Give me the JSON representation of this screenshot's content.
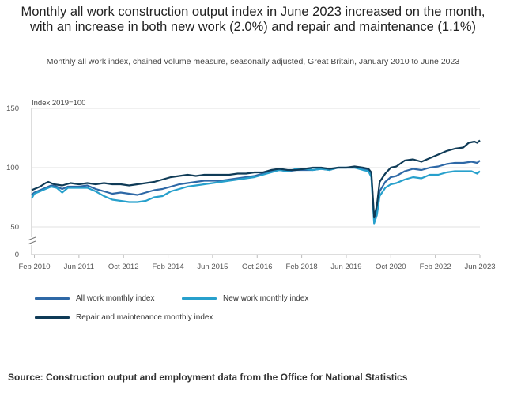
{
  "title": "Monthly all work construction output index in June 2023 increased on the month, with an increase in both new work (2.0%) and repair and maintenance (1.1%)",
  "subtitle": "Monthly all work index, chained volume measure, seasonally adjusted, Great Britain, January 2010 to June 2023",
  "source": "Source: Construction output and employment data from the Office for National Statistics",
  "colors": {
    "all_work": "#2e68a6",
    "new_work": "#27a0cc",
    "repair": "#0f3b57",
    "grid": "#e0e0e0",
    "axis": "#bbbbbb"
  },
  "chart_data": {
    "type": "line",
    "ylabel": "Index 2019=100",
    "ylim": [
      0,
      150
    ],
    "yticks": [
      0,
      50,
      100,
      150
    ],
    "y_axis_break": true,
    "xlabels": [
      "Feb 2010",
      "Jun 2011",
      "Oct 2012",
      "Feb 2014",
      "Jun 2015",
      "Oct 2016",
      "Feb 2018",
      "Jun 2019",
      "Oct 2020",
      "Feb 2022",
      "Jun 2023"
    ],
    "grid": true,
    "legend_position": "bottom",
    "series": [
      {
        "name": "All work monthly index",
        "color": "#2e68a6",
        "points": [
          [
            "2010-01",
            77
          ],
          [
            "2010-02",
            79
          ],
          [
            "2010-04",
            81
          ],
          [
            "2010-06",
            83
          ],
          [
            "2010-08",
            85
          ],
          [
            "2010-10",
            84
          ],
          [
            "2010-12",
            82
          ],
          [
            "2011-02",
            84
          ],
          [
            "2011-06",
            84
          ],
          [
            "2011-09",
            85
          ],
          [
            "2011-12",
            82
          ],
          [
            "2012-03",
            80
          ],
          [
            "2012-06",
            78
          ],
          [
            "2012-09",
            79
          ],
          [
            "2012-12",
            78
          ],
          [
            "2013-03",
            77
          ],
          [
            "2013-06",
            79
          ],
          [
            "2013-09",
            81
          ],
          [
            "2013-12",
            82
          ],
          [
            "2014-03",
            84
          ],
          [
            "2014-06",
            86
          ],
          [
            "2014-09",
            87
          ],
          [
            "2014-12",
            88
          ],
          [
            "2015-03",
            89
          ],
          [
            "2015-06",
            89
          ],
          [
            "2015-09",
            89
          ],
          [
            "2015-12",
            90
          ],
          [
            "2016-03",
            91
          ],
          [
            "2016-06",
            92
          ],
          [
            "2016-09",
            93
          ],
          [
            "2016-12",
            95
          ],
          [
            "2017-03",
            97
          ],
          [
            "2017-06",
            98
          ],
          [
            "2017-09",
            97
          ],
          [
            "2017-12",
            98
          ],
          [
            "2018-03",
            98
          ],
          [
            "2018-06",
            98
          ],
          [
            "2018-09",
            99
          ],
          [
            "2018-12",
            98
          ],
          [
            "2019-03",
            100
          ],
          [
            "2019-06",
            100
          ],
          [
            "2019-09",
            100
          ],
          [
            "2019-12",
            99
          ],
          [
            "2020-02",
            98
          ],
          [
            "2020-03",
            93
          ],
          [
            "2020-04",
            56
          ],
          [
            "2020-05",
            64
          ],
          [
            "2020-06",
            80
          ],
          [
            "2020-08",
            88
          ],
          [
            "2020-10",
            92
          ],
          [
            "2020-12",
            93
          ],
          [
            "2021-03",
            97
          ],
          [
            "2021-06",
            99
          ],
          [
            "2021-09",
            98
          ],
          [
            "2021-12",
            100
          ],
          [
            "2022-03",
            101
          ],
          [
            "2022-06",
            103
          ],
          [
            "2022-09",
            104
          ],
          [
            "2022-12",
            104
          ],
          [
            "2023-03",
            105
          ],
          [
            "2023-05",
            104
          ],
          [
            "2023-06",
            106
          ]
        ]
      },
      {
        "name": "New work monthly index",
        "color": "#27a0cc",
        "points": [
          [
            "2010-01",
            74
          ],
          [
            "2010-02",
            78
          ],
          [
            "2010-04",
            80
          ],
          [
            "2010-06",
            82
          ],
          [
            "2010-08",
            84
          ],
          [
            "2010-10",
            83
          ],
          [
            "2010-12",
            79
          ],
          [
            "2011-02",
            83
          ],
          [
            "2011-06",
            83
          ],
          [
            "2011-09",
            83
          ],
          [
            "2011-12",
            80
          ],
          [
            "2012-03",
            76
          ],
          [
            "2012-06",
            73
          ],
          [
            "2012-09",
            72
          ],
          [
            "2012-12",
            71
          ],
          [
            "2013-03",
            71
          ],
          [
            "2013-06",
            72
          ],
          [
            "2013-09",
            75
          ],
          [
            "2013-12",
            76
          ],
          [
            "2014-03",
            80
          ],
          [
            "2014-06",
            82
          ],
          [
            "2014-09",
            84
          ],
          [
            "2014-12",
            85
          ],
          [
            "2015-03",
            86
          ],
          [
            "2015-06",
            87
          ],
          [
            "2015-09",
            88
          ],
          [
            "2015-12",
            89
          ],
          [
            "2016-03",
            90
          ],
          [
            "2016-06",
            91
          ],
          [
            "2016-09",
            92
          ],
          [
            "2016-12",
            94
          ],
          [
            "2017-03",
            96
          ],
          [
            "2017-06",
            98
          ],
          [
            "2017-09",
            97
          ],
          [
            "2017-12",
            99
          ],
          [
            "2018-03",
            99
          ],
          [
            "2018-06",
            98
          ],
          [
            "2018-09",
            99
          ],
          [
            "2018-12",
            98
          ],
          [
            "2019-03",
            100
          ],
          [
            "2019-06",
            100
          ],
          [
            "2019-09",
            100
          ],
          [
            "2019-12",
            98
          ],
          [
            "2020-02",
            97
          ],
          [
            "2020-03",
            92
          ],
          [
            "2020-04",
            53
          ],
          [
            "2020-05",
            60
          ],
          [
            "2020-06",
            76
          ],
          [
            "2020-08",
            83
          ],
          [
            "2020-10",
            86
          ],
          [
            "2020-12",
            87
          ],
          [
            "2021-03",
            90
          ],
          [
            "2021-06",
            92
          ],
          [
            "2021-09",
            91
          ],
          [
            "2021-12",
            94
          ],
          [
            "2022-03",
            94
          ],
          [
            "2022-06",
            96
          ],
          [
            "2022-09",
            97
          ],
          [
            "2022-12",
            97
          ],
          [
            "2023-03",
            97
          ],
          [
            "2023-05",
            95
          ],
          [
            "2023-06",
            97
          ]
        ]
      },
      {
        "name": "Repair and maintenance monthly index",
        "color": "#0f3b57",
        "points": [
          [
            "2010-01",
            81
          ],
          [
            "2010-02",
            82
          ],
          [
            "2010-04",
            84
          ],
          [
            "2010-06",
            87
          ],
          [
            "2010-07",
            88
          ],
          [
            "2010-09",
            86
          ],
          [
            "2010-12",
            85
          ],
          [
            "2011-03",
            87
          ],
          [
            "2011-06",
            86
          ],
          [
            "2011-09",
            87
          ],
          [
            "2011-12",
            86
          ],
          [
            "2012-03",
            87
          ],
          [
            "2012-06",
            86
          ],
          [
            "2012-09",
            86
          ],
          [
            "2012-12",
            85
          ],
          [
            "2013-03",
            86
          ],
          [
            "2013-06",
            87
          ],
          [
            "2013-09",
            88
          ],
          [
            "2013-12",
            90
          ],
          [
            "2014-03",
            92
          ],
          [
            "2014-06",
            93
          ],
          [
            "2014-09",
            94
          ],
          [
            "2014-12",
            93
          ],
          [
            "2015-03",
            94
          ],
          [
            "2015-06",
            94
          ],
          [
            "2015-09",
            94
          ],
          [
            "2015-12",
            94
          ],
          [
            "2016-03",
            95
          ],
          [
            "2016-06",
            95
          ],
          [
            "2016-09",
            96
          ],
          [
            "2016-12",
            96
          ],
          [
            "2017-03",
            98
          ],
          [
            "2017-06",
            99
          ],
          [
            "2017-09",
            98
          ],
          [
            "2017-12",
            98
          ],
          [
            "2018-03",
            99
          ],
          [
            "2018-06",
            100
          ],
          [
            "2018-09",
            100
          ],
          [
            "2018-12",
            99
          ],
          [
            "2019-03",
            100
          ],
          [
            "2019-06",
            100
          ],
          [
            "2019-09",
            101
          ],
          [
            "2019-12",
            100
          ],
          [
            "2020-02",
            99
          ],
          [
            "2020-03",
            96
          ],
          [
            "2020-04",
            58
          ],
          [
            "2020-05",
            68
          ],
          [
            "2020-06",
            88
          ],
          [
            "2020-08",
            95
          ],
          [
            "2020-10",
            100
          ],
          [
            "2020-12",
            101
          ],
          [
            "2021-03",
            106
          ],
          [
            "2021-06",
            107
          ],
          [
            "2021-09",
            105
          ],
          [
            "2021-12",
            108
          ],
          [
            "2022-03",
            111
          ],
          [
            "2022-06",
            114
          ],
          [
            "2022-09",
            116
          ],
          [
            "2022-12",
            117
          ],
          [
            "2023-02",
            121
          ],
          [
            "2023-04",
            122
          ],
          [
            "2023-05",
            121
          ],
          [
            "2023-06",
            123
          ]
        ]
      }
    ]
  }
}
